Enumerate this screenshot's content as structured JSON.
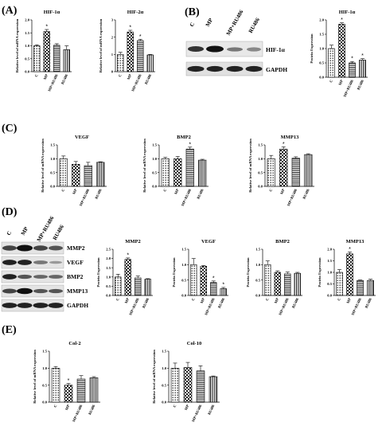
{
  "panels": {
    "A": "(A)",
    "B": "(B)",
    "C": "(C)",
    "D": "(D)",
    "E": "(E)"
  },
  "blots": {
    "B": {
      "lanes": [
        "C",
        "MP",
        "MP+RU486",
        "RU486"
      ],
      "rows": [
        "HIF-1α",
        "GAPDH"
      ]
    },
    "D": {
      "lanes": [
        "C",
        "MP",
        "MP+RU486",
        "RU486"
      ],
      "rows": [
        "MMP2",
        "VEGF",
        "BMP2",
        "MMP13",
        "GAPDH"
      ]
    }
  },
  "chart_data": [
    {
      "id": "A1",
      "type": "bar",
      "title": "HIF-1α",
      "ylabel": "Relative level of mRNA expression",
      "categories": [
        "C",
        "MP",
        "MP+RU486",
        "RU486"
      ],
      "values": [
        1.0,
        1.55,
        1.02,
        0.85
      ],
      "errors": [
        0.04,
        0.08,
        0.06,
        0.15
      ],
      "sig": [
        "",
        "*",
        "",
        ""
      ],
      "ylim": [
        0,
        2.0
      ],
      "yticks": [
        "0.0",
        "0.5",
        "1.0",
        "1.5",
        "2.0"
      ]
    },
    {
      "id": "A2",
      "type": "bar",
      "title": "HIF-2α",
      "ylabel": "Relative level of mRNA expression",
      "categories": [
        "C",
        "MP",
        "MP+RU486",
        "RU486"
      ],
      "values": [
        1.0,
        2.3,
        1.8,
        0.97
      ],
      "errors": [
        0.12,
        0.1,
        0.08,
        0.03
      ],
      "sig": [
        "",
        "*",
        "*",
        ""
      ],
      "ylim": [
        0,
        3
      ],
      "yticks": [
        "0",
        "1",
        "2",
        "3"
      ]
    },
    {
      "id": "B1",
      "type": "bar",
      "title": "HIF-1α",
      "ylabel": "Protein Expression",
      "categories": [
        "C",
        "MP",
        "MP+RU486",
        "RU486"
      ],
      "values": [
        1.0,
        1.85,
        0.5,
        0.6
      ],
      "errors": [
        0.12,
        0.05,
        0.05,
        0.05
      ],
      "sig": [
        "",
        "*",
        "*",
        "*"
      ],
      "ylim": [
        0,
        2.0
      ],
      "yticks": [
        "0.0",
        "0.5",
        "1.0",
        "1.5",
        "2.0"
      ]
    },
    {
      "id": "C1",
      "type": "bar",
      "title": "VEGF",
      "ylabel": "Relative level of mRNA expression",
      "categories": [
        "C",
        "MP",
        "MP+RU486",
        "RU486"
      ],
      "values": [
        1.0,
        0.8,
        0.75,
        0.87
      ],
      "errors": [
        0.1,
        0.1,
        0.12,
        0.02
      ],
      "sig": [
        "",
        "",
        "",
        ""
      ],
      "ylim": [
        0,
        1.5
      ],
      "yticks": [
        "0.0",
        "0.5",
        "1.0",
        "1.5"
      ]
    },
    {
      "id": "C2",
      "type": "bar",
      "title": "BMP2",
      "ylabel": "Relative level of mRNA expression",
      "categories": [
        "C",
        "MP",
        "MP+RU486",
        "RU486"
      ],
      "values": [
        1.0,
        1.0,
        1.35,
        0.95
      ],
      "errors": [
        0.05,
        0.08,
        0.07,
        0.03
      ],
      "sig": [
        "",
        "",
        "*",
        ""
      ],
      "ylim": [
        0,
        1.5
      ],
      "yticks": [
        "0.0",
        "0.5",
        "1.0",
        "1.5"
      ]
    },
    {
      "id": "C3",
      "type": "bar",
      "title": "MMP13",
      "ylabel": "Relative level of mRNA expression",
      "categories": [
        "C",
        "MP",
        "MP+RU486",
        "RU486"
      ],
      "values": [
        1.0,
        1.35,
        1.02,
        1.15
      ],
      "errors": [
        0.12,
        0.08,
        0.05,
        0.03
      ],
      "sig": [
        "",
        "*",
        "",
        ""
      ],
      "ylim": [
        0,
        1.5
      ],
      "yticks": [
        "0.0",
        "0.5",
        "1.0",
        "1.5"
      ]
    },
    {
      "id": "D1",
      "type": "bar",
      "title": "MMP2",
      "ylabel": "Protein Expression",
      "categories": [
        "C",
        "MP",
        "MP+RU486",
        "RU486"
      ],
      "values": [
        1.0,
        1.95,
        0.95,
        0.88
      ],
      "errors": [
        0.15,
        0.08,
        0.1,
        0.03
      ],
      "sig": [
        "",
        "*",
        "",
        ""
      ],
      "ylim": [
        0,
        2.5
      ],
      "yticks": [
        "0.0",
        "0.5",
        "1.0",
        "1.5",
        "2.0",
        "2.5"
      ]
    },
    {
      "id": "D2",
      "type": "bar",
      "title": "VEGF",
      "ylabel": "Protein Expression",
      "categories": [
        "C",
        "MP",
        "MP+RU486",
        "RU486"
      ],
      "values": [
        1.0,
        0.95,
        0.42,
        0.22
      ],
      "errors": [
        0.2,
        0.02,
        0.05,
        0.04
      ],
      "sig": [
        "",
        "",
        "*",
        "*"
      ],
      "ylim": [
        0,
        1.5
      ],
      "yticks": [
        "0.0",
        "0.5",
        "1.0",
        "1.5"
      ]
    },
    {
      "id": "D3",
      "type": "bar",
      "title": "BMP2",
      "ylabel": "Protein Expression",
      "categories": [
        "C",
        "MP",
        "MP+RU486",
        "RU486"
      ],
      "values": [
        1.0,
        0.75,
        0.7,
        0.72
      ],
      "errors": [
        0.12,
        0.05,
        0.06,
        0.03
      ],
      "sig": [
        "",
        "",
        "",
        ""
      ],
      "ylim": [
        0,
        1.5
      ],
      "yticks": [
        "0.0",
        "0.5",
        "1.0",
        "1.5"
      ]
    },
    {
      "id": "D4",
      "type": "bar",
      "title": "MMP13",
      "ylabel": "Protein Expression",
      "categories": [
        "C",
        "MP",
        "MP+RU486",
        "RU486"
      ],
      "values": [
        1.0,
        1.8,
        0.65,
        0.65
      ],
      "errors": [
        0.12,
        0.08,
        0.02,
        0.05
      ],
      "sig": [
        "",
        "*",
        "",
        ""
      ],
      "ylim": [
        0,
        2.0
      ],
      "yticks": [
        "0.0",
        "0.5",
        "1.0",
        "1.5",
        "2.0"
      ]
    },
    {
      "id": "E1",
      "type": "bar",
      "title": "Col-2",
      "ylabel": "Relative level of mRNA expression",
      "categories": [
        "C",
        "MP",
        "MP+RU486",
        "RU486"
      ],
      "values": [
        1.0,
        0.5,
        0.68,
        0.72
      ],
      "errors": [
        0.05,
        0.05,
        0.1,
        0.03
      ],
      "sig": [
        "",
        "*",
        "",
        ""
      ],
      "ylim": [
        0,
        1.5
      ],
      "yticks": [
        "0.0",
        "0.5",
        "1.0",
        "1.5"
      ]
    },
    {
      "id": "E2",
      "type": "bar",
      "title": "Col-10",
      "ylabel": "Relative level of mRNA expression",
      "categories": [
        "C",
        "MP",
        "MP+RU486",
        "RU486"
      ],
      "values": [
        1.0,
        1.02,
        0.92,
        0.75
      ],
      "errors": [
        0.15,
        0.15,
        0.15,
        0.02
      ],
      "sig": [
        "",
        "",
        "",
        ""
      ],
      "ylim": [
        0,
        1.5
      ],
      "yticks": [
        "0.0",
        "0.5",
        "1.0",
        "1.5"
      ]
    }
  ]
}
